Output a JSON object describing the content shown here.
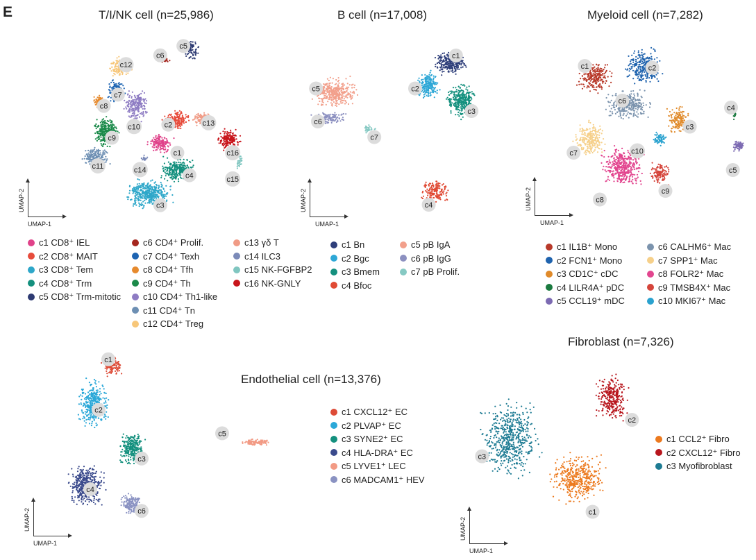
{
  "panel_letter": "E",
  "axis_labels": {
    "x": "UMAP-1",
    "y": "UMAP-2"
  },
  "chart_data": [
    {
      "type": "scatter",
      "title": "T/I/NK cell (n=25,986)",
      "xlabel": "UMAP-1",
      "ylabel": "UMAP-2",
      "n": 25986,
      "clusters": [
        {
          "id": "c1",
          "label": "c1 CD8⁺ IEL",
          "color": "#e0428a",
          "cx": 0.52,
          "cy": 0.58,
          "rx": 0.07,
          "ry": 0.06,
          "n": 160
        },
        {
          "id": "c2",
          "label": "c2 CD8⁺ MAIT",
          "color": "#e74c3c",
          "cx": 0.6,
          "cy": 0.46,
          "rx": 0.08,
          "ry": 0.06,
          "n": 200
        },
        {
          "id": "c3",
          "label": "c3 CD8⁺ Tem",
          "color": "#2ea7c9",
          "cx": 0.46,
          "cy": 0.85,
          "rx": 0.14,
          "ry": 0.09,
          "n": 420
        },
        {
          "id": "c4",
          "label": "c4 CD8⁺ Trm",
          "color": "#14907e",
          "cx": 0.61,
          "cy": 0.72,
          "rx": 0.1,
          "ry": 0.08,
          "n": 280
        },
        {
          "id": "c5",
          "label": "c5 CD8⁺ Trm-mitotic",
          "color": "#2d3a72",
          "cx": 0.67,
          "cy": 0.08,
          "rx": 0.05,
          "ry": 0.06,
          "n": 90
        },
        {
          "id": "c6",
          "label": "c6 CD4⁺ Prolif.",
          "color": "#a5271f",
          "cx": 0.54,
          "cy": 0.13,
          "rx": 0.04,
          "ry": 0.03,
          "n": 40
        },
        {
          "id": "c7",
          "label": "c7 CD4⁺ Texh",
          "color": "#1d64b2",
          "cx": 0.3,
          "cy": 0.3,
          "rx": 0.05,
          "ry": 0.07,
          "n": 120
        },
        {
          "id": "c8",
          "label": "c8 CD4⁺ Tfh",
          "color": "#e68a2e",
          "cx": 0.22,
          "cy": 0.36,
          "rx": 0.04,
          "ry": 0.05,
          "n": 90
        },
        {
          "id": "c9",
          "label": "c9 CD4⁺ Th",
          "color": "#1b8a4a",
          "cx": 0.25,
          "cy": 0.52,
          "rx": 0.08,
          "ry": 0.09,
          "n": 300
        },
        {
          "id": "c10",
          "label": "c10 CD4⁺ Th1-like",
          "color": "#8e7cc3",
          "cx": 0.4,
          "cy": 0.38,
          "rx": 0.07,
          "ry": 0.1,
          "n": 220
        },
        {
          "id": "c11",
          "label": "c11 CD4⁺ Tn",
          "color": "#6d8fb3",
          "cx": 0.2,
          "cy": 0.66,
          "rx": 0.08,
          "ry": 0.06,
          "n": 200
        },
        {
          "id": "c12",
          "label": "c12 CD4⁺ Treg",
          "color": "#f7c77a",
          "cx": 0.32,
          "cy": 0.17,
          "rx": 0.07,
          "ry": 0.07,
          "n": 150
        },
        {
          "id": "c13",
          "label": "c13 γδ T",
          "color": "#f09b86",
          "cx": 0.73,
          "cy": 0.45,
          "rx": 0.06,
          "ry": 0.04,
          "n": 110
        },
        {
          "id": "c14",
          "label": "c14 ILC3",
          "color": "#7b8ab8",
          "cx": 0.44,
          "cy": 0.66,
          "rx": 0.02,
          "ry": 0.02,
          "n": 20
        },
        {
          "id": "c15",
          "label": "c15 NK-FGFBP2",
          "color": "#80c6c0",
          "cx": 0.91,
          "cy": 0.68,
          "rx": 0.02,
          "ry": 0.04,
          "n": 30
        },
        {
          "id": "c16",
          "label": "c16 NK-GNLY",
          "color": "#c8151b",
          "cx": 0.86,
          "cy": 0.56,
          "rx": 0.07,
          "ry": 0.07,
          "n": 180
        }
      ],
      "markers": [
        {
          "label": "c1",
          "x": 0.605,
          "y": 0.63
        },
        {
          "label": "c2",
          "x": 0.56,
          "y": 0.48
        },
        {
          "label": "c3",
          "x": 0.52,
          "y": 0.91
        },
        {
          "label": "c4",
          "x": 0.665,
          "y": 0.75
        },
        {
          "label": "c5",
          "x": 0.635,
          "y": 0.06
        },
        {
          "label": "c6",
          "x": 0.52,
          "y": 0.11
        },
        {
          "label": "c7",
          "x": 0.31,
          "y": 0.32
        },
        {
          "label": "c8",
          "x": 0.24,
          "y": 0.38
        },
        {
          "label": "c9",
          "x": 0.28,
          "y": 0.55
        },
        {
          "label": "c10",
          "x": 0.39,
          "y": 0.49
        },
        {
          "label": "c11",
          "x": 0.21,
          "y": 0.7
        },
        {
          "label": "c12",
          "x": 0.35,
          "y": 0.16
        },
        {
          "label": "c13",
          "x": 0.76,
          "y": 0.47
        },
        {
          "label": "c14",
          "x": 0.42,
          "y": 0.72
        },
        {
          "label": "c15",
          "x": 0.88,
          "y": 0.77
        },
        {
          "label": "c16",
          "x": 0.88,
          "y": 0.63
        }
      ]
    },
    {
      "type": "scatter",
      "title": "B cell (n=17,008)",
      "xlabel": "UMAP-1",
      "ylabel": "UMAP-2",
      "n": 17008,
      "clusters": [
        {
          "id": "c1",
          "label": "c1 Bn",
          "color": "#2f3f7a",
          "cx": 0.78,
          "cy": 0.12,
          "rx": 0.1,
          "ry": 0.08,
          "n": 280
        },
        {
          "id": "c2",
          "label": "c2 Bgc",
          "color": "#2ea7d6",
          "cx": 0.67,
          "cy": 0.25,
          "rx": 0.07,
          "ry": 0.09,
          "n": 220
        },
        {
          "id": "c3",
          "label": "c3 Bmem",
          "color": "#14907e",
          "cx": 0.84,
          "cy": 0.34,
          "rx": 0.09,
          "ry": 0.12,
          "n": 330
        },
        {
          "id": "c4",
          "label": "c4 Bfoc",
          "color": "#e04a34",
          "cx": 0.7,
          "cy": 0.86,
          "rx": 0.09,
          "ry": 0.08,
          "n": 170
        },
        {
          "id": "c5",
          "label": "c5 pB IgA",
          "color": "#f2a08c",
          "cx": 0.18,
          "cy": 0.29,
          "rx": 0.15,
          "ry": 0.1,
          "n": 400
        },
        {
          "id": "c6",
          "label": "c6 pB IgG",
          "color": "#8c90c0",
          "cx": 0.15,
          "cy": 0.44,
          "rx": 0.11,
          "ry": 0.04,
          "n": 120
        },
        {
          "id": "c7",
          "label": "c7 pB Prolif.",
          "color": "#86c9c3",
          "cx": 0.36,
          "cy": 0.5,
          "rx": 0.04,
          "ry": 0.03,
          "n": 30
        }
      ],
      "markers": [
        {
          "label": "c1",
          "x": 0.81,
          "y": 0.08
        },
        {
          "label": "c2",
          "x": 0.6,
          "y": 0.27
        },
        {
          "label": "c3",
          "x": 0.89,
          "y": 0.4
        },
        {
          "label": "c4",
          "x": 0.67,
          "y": 0.94
        },
        {
          "label": "c5",
          "x": 0.09,
          "y": 0.27
        },
        {
          "label": "c6",
          "x": 0.1,
          "y": 0.46
        },
        {
          "label": "c7",
          "x": 0.39,
          "y": 0.55
        }
      ]
    },
    {
      "type": "scatter",
      "title": "Myeloid cell (n=7,282)",
      "xlabel": "UMAP-1",
      "ylabel": "UMAP-2",
      "n": 7282,
      "clusters": [
        {
          "id": "c1",
          "label": "c1 IL1B⁺ Mono",
          "color": "#b83a2a",
          "cx": 0.17,
          "cy": 0.2,
          "rx": 0.11,
          "ry": 0.11,
          "n": 260
        },
        {
          "id": "c2",
          "label": "c2 FCN1⁺ Mono",
          "color": "#1f63ae",
          "cx": 0.43,
          "cy": 0.15,
          "rx": 0.12,
          "ry": 0.12,
          "n": 300
        },
        {
          "id": "c3",
          "label": "c3 CD1C⁺ cDC",
          "color": "#e08a2a",
          "cx": 0.62,
          "cy": 0.45,
          "rx": 0.07,
          "ry": 0.1,
          "n": 150
        },
        {
          "id": "c4",
          "label": "c4 LILR4A⁺ pDC",
          "color": "#1b7a40",
          "cx": 0.92,
          "cy": 0.42,
          "rx": 0.01,
          "ry": 0.05,
          "n": 18
        },
        {
          "id": "c5",
          "label": "c5 CCL19⁺ mDC",
          "color": "#7c6ab2",
          "cx": 0.94,
          "cy": 0.6,
          "rx": 0.04,
          "ry": 0.04,
          "n": 60
        },
        {
          "id": "c6",
          "label": "c6 CALHM6⁺ Mac",
          "color": "#7b93ad",
          "cx": 0.35,
          "cy": 0.36,
          "rx": 0.14,
          "ry": 0.1,
          "n": 280
        },
        {
          "id": "c7",
          "label": "c7 SPP1⁺ Mac",
          "color": "#f6d08a",
          "cx": 0.15,
          "cy": 0.56,
          "rx": 0.1,
          "ry": 0.12,
          "n": 250
        },
        {
          "id": "c8",
          "label": "c8 FOLR2⁺ Mac",
          "color": "#e2468f",
          "cx": 0.32,
          "cy": 0.72,
          "rx": 0.13,
          "ry": 0.14,
          "n": 420
        },
        {
          "id": "c9",
          "label": "c9 TMSB4X⁺ Mac",
          "color": "#d5453b",
          "cx": 0.52,
          "cy": 0.76,
          "rx": 0.07,
          "ry": 0.08,
          "n": 120
        },
        {
          "id": "c10",
          "label": "c10 MKI67⁺ Mac",
          "color": "#2aa2cf",
          "cx": 0.52,
          "cy": 0.56,
          "rx": 0.05,
          "ry": 0.05,
          "n": 70
        }
      ],
      "markers": [
        {
          "label": "c1",
          "x": 0.12,
          "y": 0.14
        },
        {
          "label": "c2",
          "x": 0.48,
          "y": 0.15
        },
        {
          "label": "c3",
          "x": 0.68,
          "y": 0.49
        },
        {
          "label": "c4",
          "x": 0.9,
          "y": 0.38
        },
        {
          "label": "c5",
          "x": 0.91,
          "y": 0.74
        },
        {
          "label": "c6",
          "x": 0.32,
          "y": 0.34
        },
        {
          "label": "c7",
          "x": 0.06,
          "y": 0.64
        },
        {
          "label": "c8",
          "x": 0.2,
          "y": 0.91
        },
        {
          "label": "c9",
          "x": 0.55,
          "y": 0.86
        },
        {
          "label": "c10",
          "x": 0.4,
          "y": 0.63
        }
      ]
    },
    {
      "type": "scatter",
      "title": "Endothelial cell (n=13,376)",
      "xlabel": "UMAP-1",
      "ylabel": "UMAP-2",
      "n": 13376,
      "clusters": [
        {
          "id": "c1",
          "label": "c1 CXCL12⁺ EC",
          "color": "#dd4b37",
          "cx": 0.4,
          "cy": 0.07,
          "rx": 0.1,
          "ry": 0.06,
          "n": 120
        },
        {
          "id": "c2",
          "label": "c2 PLVAP⁺ EC",
          "color": "#2ba8d8",
          "cx": 0.27,
          "cy": 0.28,
          "rx": 0.13,
          "ry": 0.16,
          "n": 380
        },
        {
          "id": "c3",
          "label": "c3 SYNE2⁺ EC",
          "color": "#14907e",
          "cx": 0.55,
          "cy": 0.52,
          "rx": 0.11,
          "ry": 0.11,
          "n": 300
        },
        {
          "id": "c4",
          "label": "c4 HLA-DRA⁺ EC",
          "color": "#3a4a8c",
          "cx": 0.22,
          "cy": 0.73,
          "rx": 0.15,
          "ry": 0.13,
          "n": 480
        },
        {
          "id": "c5",
          "label": "c5 LYVE1⁺ LEC",
          "color": "#f29a84",
          "cx": 1.45,
          "cy": 0.49,
          "rx": 0.13,
          "ry": 0.025,
          "n": 110
        },
        {
          "id": "c6",
          "label": "c6 MADCAM1⁺ HEV",
          "color": "#8a92c2",
          "cx": 0.55,
          "cy": 0.83,
          "rx": 0.09,
          "ry": 0.07,
          "n": 170
        }
      ],
      "markers": [
        {
          "label": "c1",
          "x": 0.38,
          "y": 0.03
        },
        {
          "label": "c2",
          "x": 0.31,
          "y": 0.31
        },
        {
          "label": "c3",
          "x": 0.62,
          "y": 0.58
        },
        {
          "label": "c4",
          "x": 0.25,
          "y": 0.75
        },
        {
          "label": "c5",
          "x": 1.2,
          "y": 0.44
        },
        {
          "label": "c6",
          "x": 0.62,
          "y": 0.87
        }
      ]
    },
    {
      "type": "scatter",
      "title": "Fibroblast (n=7,326)",
      "xlabel": "UMAP-1",
      "ylabel": "UMAP-2",
      "n": 7326,
      "clusters": [
        {
          "id": "c1",
          "label": "c1 CCL2⁺ Fibro",
          "color": "#ec7a1f",
          "cx": 0.6,
          "cy": 0.66,
          "rx": 0.17,
          "ry": 0.17,
          "n": 420
        },
        {
          "id": "c2",
          "label": "c2 CXCL12⁺ Fibro",
          "color": "#b8161d",
          "cx": 0.78,
          "cy": 0.2,
          "rx": 0.1,
          "ry": 0.16,
          "n": 300
        },
        {
          "id": "c3",
          "label": "c3 Myofibroblast",
          "color": "#1d7b93",
          "cx": 0.24,
          "cy": 0.43,
          "rx": 0.18,
          "ry": 0.26,
          "n": 560
        }
      ],
      "markers": [
        {
          "label": "c1",
          "x": 0.68,
          "y": 0.85
        },
        {
          "label": "c2",
          "x": 0.89,
          "y": 0.32
        },
        {
          "label": "c3",
          "x": 0.09,
          "y": 0.53
        }
      ]
    }
  ]
}
